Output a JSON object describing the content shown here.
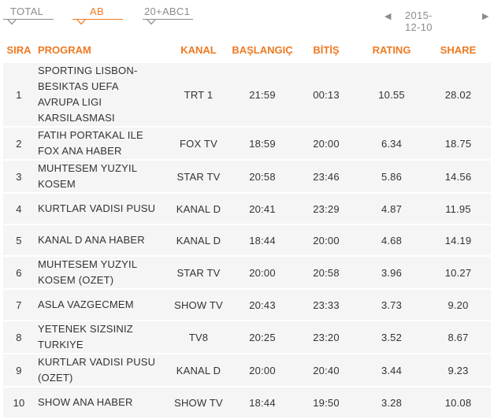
{
  "tabs": [
    {
      "label": "TOTAL",
      "active": false
    },
    {
      "label": "AB",
      "active": true
    },
    {
      "label": "20+ABC1",
      "active": false
    }
  ],
  "date": "2015-12-10",
  "colors": {
    "accent": "#ee7a22",
    "muted": "#8c8c8c",
    "row_bg": "#f5f5f5",
    "text": "#333333"
  },
  "icons": {
    "prev": "chevron-left-icon",
    "next": "chevron-right-icon"
  },
  "table": {
    "headers": {
      "rank": "SIRA",
      "program": "PROGRAM",
      "channel": "KANAL",
      "start": "BAŞLANGIÇ",
      "end": "BİTİŞ",
      "rating": "RATING",
      "share": "SHARE"
    },
    "rows": [
      {
        "rank": "1",
        "program": [
          "SPORTING LISBON-",
          "BESIKTAS UEFA",
          "AVRUPA LIGI",
          "KARSILASMASI"
        ],
        "channel": "TRT 1",
        "start": "21:59",
        "end": "00:13",
        "rating": "10.55",
        "share": "28.02"
      },
      {
        "rank": "2",
        "program": [
          "FATIH PORTAKAL ILE",
          "FOX ANA HABER"
        ],
        "channel": "FOX TV",
        "start": "18:59",
        "end": "20:00",
        "rating": "6.34",
        "share": "18.75"
      },
      {
        "rank": "3",
        "program": [
          "MUHTESEM YUZYIL",
          "KOSEM"
        ],
        "channel": "STAR TV",
        "start": "20:58",
        "end": "23:46",
        "rating": "5.86",
        "share": "14.56"
      },
      {
        "rank": "4",
        "program": [
          "KURTLAR VADISI PUSU"
        ],
        "channel": "KANAL D",
        "start": "20:41",
        "end": "23:29",
        "rating": "4.87",
        "share": "11.95"
      },
      {
        "rank": "5",
        "program": [
          "KANAL D ANA HABER"
        ],
        "channel": "KANAL D",
        "start": "18:44",
        "end": "20:00",
        "rating": "4.68",
        "share": "14.19"
      },
      {
        "rank": "6",
        "program": [
          "MUHTESEM YUZYIL",
          "KOSEM (OZET)"
        ],
        "channel": "STAR TV",
        "start": "20:00",
        "end": "20:58",
        "rating": "3.96",
        "share": "10.27"
      },
      {
        "rank": "7",
        "program": [
          "ASLA VAZGECMEM"
        ],
        "channel": "SHOW TV",
        "start": "20:43",
        "end": "23:33",
        "rating": "3.73",
        "share": "9.20"
      },
      {
        "rank": "8",
        "program": [
          "YETENEK SIZSINIZ",
          "TURKIYE"
        ],
        "channel": "TV8",
        "start": "20:25",
        "end": "23:20",
        "rating": "3.52",
        "share": "8.67"
      },
      {
        "rank": "9",
        "program": [
          "KURTLAR VADISI PUSU",
          "(OZET)"
        ],
        "channel": "KANAL D",
        "start": "20:00",
        "end": "20:40",
        "rating": "3.44",
        "share": "9.23"
      },
      {
        "rank": "10",
        "program": [
          "SHOW ANA HABER"
        ],
        "channel": "SHOW TV",
        "start": "18:44",
        "end": "19:50",
        "rating": "3.28",
        "share": "10.08"
      }
    ]
  }
}
